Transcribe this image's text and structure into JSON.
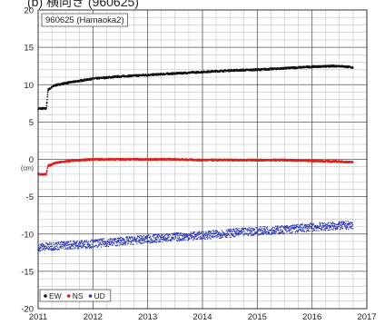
{
  "header": {
    "text": "(b) 横向き (960625)"
  },
  "chart_data": {
    "type": "scatter",
    "title": "960625 (Hamaoka2)",
    "ylabel": "(cm)",
    "xlim": [
      2011,
      2017
    ],
    "ylim": [
      -20,
      20
    ],
    "x_ticks": [
      "2011",
      "2012",
      "2013",
      "2014",
      "2015",
      "2016",
      "2017"
    ],
    "y_ticks": [
      "20",
      "15",
      "10",
      "5",
      "0",
      "-5",
      "-10",
      "-15",
      "-20"
    ],
    "grid": true,
    "legend_position": "bottom-left",
    "series": [
      {
        "name": "EW",
        "color": "#111111",
        "x": [
          2011.0,
          2011.15,
          2011.18,
          2011.3,
          2011.5,
          2011.75,
          2012.0,
          2012.5,
          2013.0,
          2013.5,
          2014.0,
          2014.5,
          2015.0,
          2015.5,
          2016.0,
          2016.5,
          2016.75
        ],
        "y": [
          6.8,
          6.8,
          9.3,
          9.9,
          10.2,
          10.5,
          10.8,
          11.1,
          11.3,
          11.5,
          11.7,
          11.9,
          12.0,
          12.2,
          12.4,
          12.5,
          12.3
        ]
      },
      {
        "name": "NS",
        "color": "#e0201b",
        "x": [
          2011.0,
          2011.15,
          2011.18,
          2011.3,
          2011.6,
          2012.0,
          2012.5,
          2013.0,
          2013.5,
          2014.0,
          2014.5,
          2015.0,
          2015.5,
          2016.0,
          2016.5,
          2016.75
        ],
        "y": [
          -2.0,
          -2.0,
          -0.9,
          -0.5,
          -0.2,
          0.0,
          0.0,
          0.0,
          0.0,
          -0.1,
          -0.1,
          -0.1,
          -0.1,
          -0.2,
          -0.3,
          -0.4
        ]
      },
      {
        "name": "UD",
        "color": "#2c39b5",
        "x": [
          2011.0,
          2011.5,
          2012.0,
          2012.5,
          2013.0,
          2013.5,
          2014.0,
          2014.5,
          2015.0,
          2015.5,
          2016.0,
          2016.5,
          2016.75
        ],
        "y": [
          -11.8,
          -11.5,
          -11.3,
          -11.0,
          -10.7,
          -10.4,
          -10.2,
          -9.9,
          -9.6,
          -9.4,
          -9.1,
          -8.9,
          -8.8
        ]
      }
    ]
  }
}
